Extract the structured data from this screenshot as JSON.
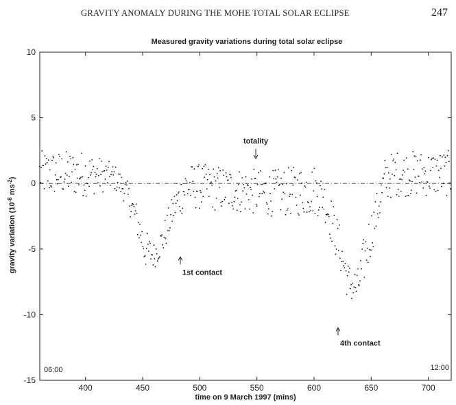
{
  "page": {
    "running_title": "GRAVITY ANOMALY DURING THE MOHE TOTAL SOLAR ECLIPSE",
    "page_number": "247"
  },
  "chart_data": {
    "type": "scatter",
    "title": "Measured gravity variations during total solar eclipse",
    "xlabel": "time on 9 March 1997 (mins)",
    "ylabel_main": "gravity variation (10",
    "ylabel_exp": "-8",
    "ylabel_unit": " ms",
    "ylabel_unit_exp": "-2",
    "ylabel_close": ")",
    "xlim": [
      360,
      720
    ],
    "ylim": [
      -15,
      10
    ],
    "x_ticks": [
      400,
      450,
      500,
      550,
      600,
      650,
      700
    ],
    "y_ticks": [
      10,
      5,
      0,
      -5,
      -10,
      -15
    ],
    "grid": false,
    "reference_line": {
      "y": 0,
      "style": "dash-dot"
    },
    "annotations": [
      {
        "id": "totality",
        "text": "totality",
        "x": 549,
        "y": 1.9,
        "arrow": "down"
      },
      {
        "id": "first-contact",
        "text": "1st contact",
        "x": 483,
        "y": -5.6,
        "arrow": "up"
      },
      {
        "id": "fourth-contact",
        "text": "4th contact",
        "x": 621,
        "y": -11,
        "arrow": "up"
      }
    ],
    "corner_labels": {
      "start": "06:00",
      "end": "12:00"
    },
    "series": [
      {
        "marker": "dot",
        "envelope_description_points": [
          [
            360,
            -1.0,
            2.5
          ],
          [
            400,
            -1.0,
            2.5
          ],
          [
            425,
            -0.5,
            1.5
          ],
          [
            435,
            -1.5,
            0.5
          ],
          [
            445,
            -4.0,
            -1.5
          ],
          [
            452,
            -6.5,
            -3.5
          ],
          [
            460,
            -6.5,
            -4.5
          ],
          [
            468,
            -5.5,
            -3.0
          ],
          [
            478,
            -3.0,
            -0.5
          ],
          [
            488,
            -2.0,
            1.5
          ],
          [
            500,
            -2.0,
            1.5
          ],
          [
            560,
            -2.5,
            1.0
          ],
          [
            600,
            -2.5,
            1.5
          ],
          [
            608,
            -2.5,
            0.5
          ],
          [
            615,
            -4.5,
            -1.0
          ],
          [
            622,
            -6.5,
            -3.0
          ],
          [
            630,
            -9.0,
            -6.0
          ],
          [
            638,
            -9.5,
            -6.5
          ],
          [
            646,
            -7.0,
            -3.0
          ],
          [
            654,
            -4.0,
            -1.0
          ],
          [
            662,
            -1.5,
            2.0
          ],
          [
            670,
            -1.0,
            2.5
          ],
          [
            720,
            -1.0,
            2.5
          ]
        ],
        "count": 560
      }
    ]
  }
}
